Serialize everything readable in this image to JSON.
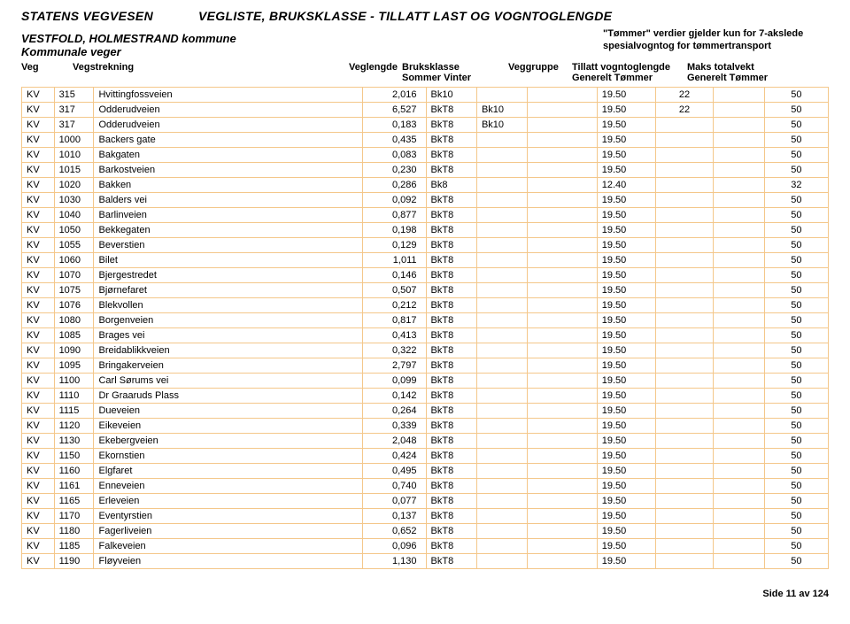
{
  "header": {
    "org": "STATENS VEGVESEN",
    "doc_title": "VEGLISTE,  BRUKSKLASSE - TILLATT LAST OG VOGNTOGLENGDE",
    "region": "VESTFOLD, HOLMESTRAND kommune",
    "subtitle": "Kommunale veger",
    "note_line1": "\"Tømmer\" verdier gjelder kun for 7-akslede",
    "note_line2": "spesialvogntog for tømmertransport"
  },
  "columns": {
    "veg": "Veg",
    "strekning": "Vegstrekning",
    "lengde": "Veglengde",
    "bruks": "Bruksklasse",
    "bruks_sub": "Sommer   Vinter",
    "gruppe": "Veggruppe",
    "tillatt": "Tillatt vogntoglengde",
    "tillatt_sub": "Generelt      Tømmer",
    "maks": "Maks totalvekt",
    "maks_sub": "Generelt  Tømmer"
  },
  "rows": [
    {
      "veg": "KV",
      "num": "315",
      "name": "Hvittingfossveien",
      "len": "2,016",
      "som": "Bk10",
      "vin": "",
      "grp": "",
      "tgen": "19.50",
      "ttom": "22",
      "mgen": "",
      "mtom": "50"
    },
    {
      "veg": "KV",
      "num": "317",
      "name": "Odderudveien",
      "len": "6,527",
      "som": "BkT8",
      "vin": "Bk10",
      "grp": "",
      "tgen": "19.50",
      "ttom": "22",
      "mgen": "",
      "mtom": "50"
    },
    {
      "veg": "KV",
      "num": "317",
      "name": "Odderudveien",
      "len": "0,183",
      "som": "BkT8",
      "vin": "Bk10",
      "grp": "",
      "tgen": "19.50",
      "ttom": "",
      "mgen": "",
      "mtom": "50"
    },
    {
      "veg": "KV",
      "num": "1000",
      "name": "Backers gate",
      "len": "0,435",
      "som": "BkT8",
      "vin": "",
      "grp": "",
      "tgen": "19.50",
      "ttom": "",
      "mgen": "",
      "mtom": "50"
    },
    {
      "veg": "KV",
      "num": "1010",
      "name": "Bakgaten",
      "len": "0,083",
      "som": "BkT8",
      "vin": "",
      "grp": "",
      "tgen": "19.50",
      "ttom": "",
      "mgen": "",
      "mtom": "50"
    },
    {
      "veg": "KV",
      "num": "1015",
      "name": "Barkostveien",
      "len": "0,230",
      "som": "BkT8",
      "vin": "",
      "grp": "",
      "tgen": "19.50",
      "ttom": "",
      "mgen": "",
      "mtom": "50"
    },
    {
      "veg": "KV",
      "num": "1020",
      "name": "Bakken",
      "len": "0,286",
      "som": "Bk8",
      "vin": "",
      "grp": "",
      "tgen": "12.40",
      "ttom": "",
      "mgen": "",
      "mtom": "32"
    },
    {
      "veg": "KV",
      "num": "1030",
      "name": "Balders vei",
      "len": "0,092",
      "som": "BkT8",
      "vin": "",
      "grp": "",
      "tgen": "19.50",
      "ttom": "",
      "mgen": "",
      "mtom": "50"
    },
    {
      "veg": "KV",
      "num": "1040",
      "name": "Barlinveien",
      "len": "0,877",
      "som": "BkT8",
      "vin": "",
      "grp": "",
      "tgen": "19.50",
      "ttom": "",
      "mgen": "",
      "mtom": "50"
    },
    {
      "veg": "KV",
      "num": "1050",
      "name": "Bekkegaten",
      "len": "0,198",
      "som": "BkT8",
      "vin": "",
      "grp": "",
      "tgen": "19.50",
      "ttom": "",
      "mgen": "",
      "mtom": "50"
    },
    {
      "veg": "KV",
      "num": "1055",
      "name": "Beverstien",
      "len": "0,129",
      "som": "BkT8",
      "vin": "",
      "grp": "",
      "tgen": "19.50",
      "ttom": "",
      "mgen": "",
      "mtom": "50"
    },
    {
      "veg": "KV",
      "num": "1060",
      "name": "Bilet",
      "len": "1,011",
      "som": "BkT8",
      "vin": "",
      "grp": "",
      "tgen": "19.50",
      "ttom": "",
      "mgen": "",
      "mtom": "50"
    },
    {
      "veg": "KV",
      "num": "1070",
      "name": "Bjergestredet",
      "len": "0,146",
      "som": "BkT8",
      "vin": "",
      "grp": "",
      "tgen": "19.50",
      "ttom": "",
      "mgen": "",
      "mtom": "50"
    },
    {
      "veg": "KV",
      "num": "1075",
      "name": "Bjørnefaret",
      "len": "0,507",
      "som": "BkT8",
      "vin": "",
      "grp": "",
      "tgen": "19.50",
      "ttom": "",
      "mgen": "",
      "mtom": "50"
    },
    {
      "veg": "KV",
      "num": "1076",
      "name": "Blekvollen",
      "len": "0,212",
      "som": "BkT8",
      "vin": "",
      "grp": "",
      "tgen": "19.50",
      "ttom": "",
      "mgen": "",
      "mtom": "50"
    },
    {
      "veg": "KV",
      "num": "1080",
      "name": "Borgenveien",
      "len": "0,817",
      "som": "BkT8",
      "vin": "",
      "grp": "",
      "tgen": "19.50",
      "ttom": "",
      "mgen": "",
      "mtom": "50"
    },
    {
      "veg": "KV",
      "num": "1085",
      "name": "Brages vei",
      "len": "0,413",
      "som": "BkT8",
      "vin": "",
      "grp": "",
      "tgen": "19.50",
      "ttom": "",
      "mgen": "",
      "mtom": "50"
    },
    {
      "veg": "KV",
      "num": "1090",
      "name": "Breidablikkveien",
      "len": "0,322",
      "som": "BkT8",
      "vin": "",
      "grp": "",
      "tgen": "19.50",
      "ttom": "",
      "mgen": "",
      "mtom": "50"
    },
    {
      "veg": "KV",
      "num": "1095",
      "name": "Bringakerveien",
      "len": "2,797",
      "som": "BkT8",
      "vin": "",
      "grp": "",
      "tgen": "19.50",
      "ttom": "",
      "mgen": "",
      "mtom": "50"
    },
    {
      "veg": "KV",
      "num": "1100",
      "name": "Carl Sørums vei",
      "len": "0,099",
      "som": "BkT8",
      "vin": "",
      "grp": "",
      "tgen": "19.50",
      "ttom": "",
      "mgen": "",
      "mtom": "50"
    },
    {
      "veg": "KV",
      "num": "1110",
      "name": "Dr Graaruds Plass",
      "len": "0,142",
      "som": "BkT8",
      "vin": "",
      "grp": "",
      "tgen": "19.50",
      "ttom": "",
      "mgen": "",
      "mtom": "50"
    },
    {
      "veg": "KV",
      "num": "1115",
      "name": "Dueveien",
      "len": "0,264",
      "som": "BkT8",
      "vin": "",
      "grp": "",
      "tgen": "19.50",
      "ttom": "",
      "mgen": "",
      "mtom": "50"
    },
    {
      "veg": "KV",
      "num": "1120",
      "name": "Eikeveien",
      "len": "0,339",
      "som": "BkT8",
      "vin": "",
      "grp": "",
      "tgen": "19.50",
      "ttom": "",
      "mgen": "",
      "mtom": "50"
    },
    {
      "veg": "KV",
      "num": "1130",
      "name": "Ekebergveien",
      "len": "2,048",
      "som": "BkT8",
      "vin": "",
      "grp": "",
      "tgen": "19.50",
      "ttom": "",
      "mgen": "",
      "mtom": "50"
    },
    {
      "veg": "KV",
      "num": "1150",
      "name": "Ekornstien",
      "len": "0,424",
      "som": "BkT8",
      "vin": "",
      "grp": "",
      "tgen": "19.50",
      "ttom": "",
      "mgen": "",
      "mtom": "50"
    },
    {
      "veg": "KV",
      "num": "1160",
      "name": "Elgfaret",
      "len": "0,495",
      "som": "BkT8",
      "vin": "",
      "grp": "",
      "tgen": "19.50",
      "ttom": "",
      "mgen": "",
      "mtom": "50"
    },
    {
      "veg": "KV",
      "num": "1161",
      "name": "Enneveien",
      "len": "0,740",
      "som": "BkT8",
      "vin": "",
      "grp": "",
      "tgen": "19.50",
      "ttom": "",
      "mgen": "",
      "mtom": "50"
    },
    {
      "veg": "KV",
      "num": "1165",
      "name": "Erleveien",
      "len": "0,077",
      "som": "BkT8",
      "vin": "",
      "grp": "",
      "tgen": "19.50",
      "ttom": "",
      "mgen": "",
      "mtom": "50"
    },
    {
      "veg": "KV",
      "num": "1170",
      "name": "Eventyrstien",
      "len": "0,137",
      "som": "BkT8",
      "vin": "",
      "grp": "",
      "tgen": "19.50",
      "ttom": "",
      "mgen": "",
      "mtom": "50"
    },
    {
      "veg": "KV",
      "num": "1180",
      "name": "Fagerliveien",
      "len": "0,652",
      "som": "BkT8",
      "vin": "",
      "grp": "",
      "tgen": "19.50",
      "ttom": "",
      "mgen": "",
      "mtom": "50"
    },
    {
      "veg": "KV",
      "num": "1185",
      "name": "Falkeveien",
      "len": "0,096",
      "som": "BkT8",
      "vin": "",
      "grp": "",
      "tgen": "19.50",
      "ttom": "",
      "mgen": "",
      "mtom": "50"
    },
    {
      "veg": "KV",
      "num": "1190",
      "name": "Fløyveien",
      "len": "1,130",
      "som": "BkT8",
      "vin": "",
      "grp": "",
      "tgen": "19.50",
      "ttom": "",
      "mgen": "",
      "mtom": "50"
    }
  ],
  "footer": "Side 11 av 124",
  "style": {
    "border_color": "#f4c78a",
    "text_color": "#000000",
    "background": "#ffffff",
    "font_size_body": 11,
    "font_size_header": 14
  }
}
